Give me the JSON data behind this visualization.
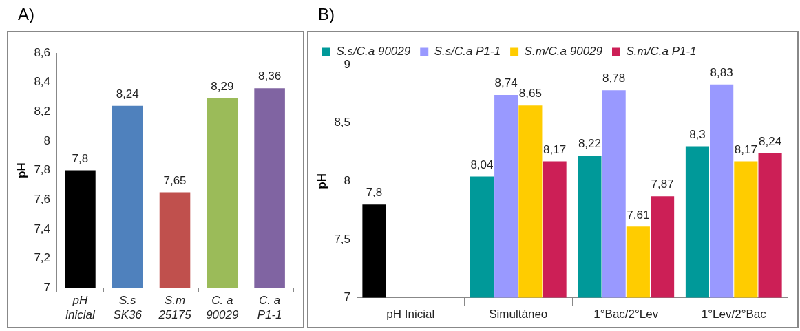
{
  "chart_data": [
    {
      "type": "bar",
      "title": "A)",
      "ylabel": "pH",
      "categories": [
        "pH\ninicial",
        "S.s\nSK36",
        "S.m\n25175",
        "C. a\n90029",
        "C. a\nP1-1"
      ],
      "values": [
        7.8,
        8.24,
        7.65,
        8.29,
        8.36
      ],
      "colors": [
        "#000000",
        "#4f81bd",
        "#c0504d",
        "#9bbb59",
        "#8064a2"
      ],
      "value_labels": [
        "7,8",
        "8,24",
        "7,65",
        "8,29",
        "8,36"
      ],
      "ylim": [
        7,
        8.6
      ],
      "yticks": [
        7,
        {
          "value": 7.2,
          "label": "7,2"
        },
        {
          "value": 7.4,
          "label": "7,4"
        },
        {
          "value": 7.6,
          "label": "7,6"
        },
        {
          "value": 7.8,
          "label": "7,8"
        },
        8,
        {
          "value": 8.2,
          "label": "8,2"
        },
        {
          "value": 8.4,
          "label": "8,4"
        },
        {
          "value": 8.6,
          "label": "8,6"
        }
      ],
      "grid": false,
      "legend": false
    },
    {
      "type": "bar",
      "title": "B)",
      "ylabel": "pH",
      "categories": [
        "pH Inicial",
        "Simultáneo",
        "1°Bac/2°Lev",
        "1°Lev/2°Bac"
      ],
      "series": [
        {
          "color": "#000000",
          "values": [
            7.8,
            null,
            null,
            null
          ],
          "value_labels": [
            "7,8",
            null,
            null,
            null
          ]
        },
        {
          "name": "S.s/C.a 90029",
          "color": "#009999",
          "values": [
            null,
            8.04,
            8.22,
            8.3
          ],
          "value_labels": [
            null,
            "8,04",
            "8,22",
            "8,3"
          ]
        },
        {
          "name": "S.s/C.a P1-1",
          "color": "#9999ff",
          "values": [
            null,
            8.74,
            8.78,
            8.83
          ],
          "value_labels": [
            null,
            "8,74",
            "8,78",
            "8,83"
          ]
        },
        {
          "name": "S.m/C.a 90029",
          "color": "#ffcc00",
          "values": [
            null,
            8.65,
            7.61,
            8.17
          ],
          "value_labels": [
            null,
            "8,65",
            "7,61",
            "8,17"
          ]
        },
        {
          "name": "S.m/C.a P1-1",
          "color": "#cc1f56",
          "values": [
            null,
            8.17,
            7.87,
            8.24
          ],
          "value_labels": [
            null,
            "8,17",
            "7,87",
            "8,24"
          ]
        }
      ],
      "ylim": [
        7,
        9
      ],
      "yticks": [
        7,
        {
          "value": 7.5,
          "label": "7,5"
        },
        8,
        {
          "value": 8.5,
          "label": "8,5"
        },
        9
      ],
      "grid": false,
      "legend": "top"
    }
  ]
}
